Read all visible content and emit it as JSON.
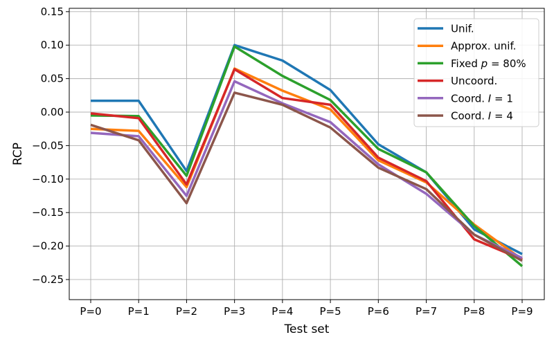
{
  "chart_data": {
    "type": "line",
    "xlabel": "Test set",
    "ylabel": "RCP",
    "categories": [
      "P=0",
      "P=1",
      "P=2",
      "P=3",
      "P=4",
      "P=5",
      "P=6",
      "P=7",
      "P=8",
      "P=9"
    ],
    "ylim": [
      -0.28,
      0.155
    ],
    "yticks": [
      -0.25,
      -0.2,
      -0.15,
      -0.1,
      -0.05,
      0.0,
      0.05,
      0.1,
      0.15
    ],
    "ytick_labels": [
      "−0.25",
      "−0.20",
      "−0.15",
      "−0.10",
      "−0.05",
      "0.00",
      "0.05",
      "0.10",
      "0.15"
    ],
    "grid": true,
    "legend_position": "top-right",
    "series": [
      {
        "name_parts": [
          {
            "t": "Unif."
          }
        ],
        "color": "#1f77b4",
        "values": [
          0.017,
          0.017,
          -0.088,
          0.1,
          0.077,
          0.033,
          -0.048,
          -0.09,
          -0.175,
          -0.212
        ]
      },
      {
        "name_parts": [
          {
            "t": "Approx. unif."
          }
        ],
        "color": "#ff7f0e",
        "values": [
          -0.025,
          -0.028,
          -0.112,
          0.065,
          0.032,
          0.004,
          -0.072,
          -0.105,
          -0.168,
          -0.22
        ]
      },
      {
        "name_parts": [
          {
            "t": "Fixed "
          },
          {
            "t": "p",
            "i": true
          },
          {
            "t": " = 80%"
          }
        ],
        "color": "#2ca02c",
        "values": [
          -0.005,
          -0.006,
          -0.095,
          0.098,
          0.054,
          0.018,
          -0.055,
          -0.09,
          -0.17,
          -0.23
        ]
      },
      {
        "name_parts": [
          {
            "t": "Uncoord."
          }
        ],
        "color": "#d62728",
        "values": [
          -0.002,
          -0.009,
          -0.108,
          0.064,
          0.021,
          0.011,
          -0.068,
          -0.103,
          -0.19,
          -0.22
        ]
      },
      {
        "name_parts": [
          {
            "t": "Coord. "
          },
          {
            "t": "I",
            "i": true
          },
          {
            "t": " = 1"
          }
        ],
        "color": "#9467bd",
        "values": [
          -0.031,
          -0.036,
          -0.125,
          0.046,
          0.013,
          -0.015,
          -0.078,
          -0.122,
          -0.183,
          -0.218
        ]
      },
      {
        "name_parts": [
          {
            "t": "Coord. "
          },
          {
            "t": "I",
            "i": true
          },
          {
            "t": " = 4"
          }
        ],
        "color": "#8c564b",
        "values": [
          -0.019,
          -0.042,
          -0.136,
          0.029,
          0.011,
          -0.023,
          -0.083,
          -0.115,
          -0.183,
          -0.222
        ]
      }
    ]
  }
}
